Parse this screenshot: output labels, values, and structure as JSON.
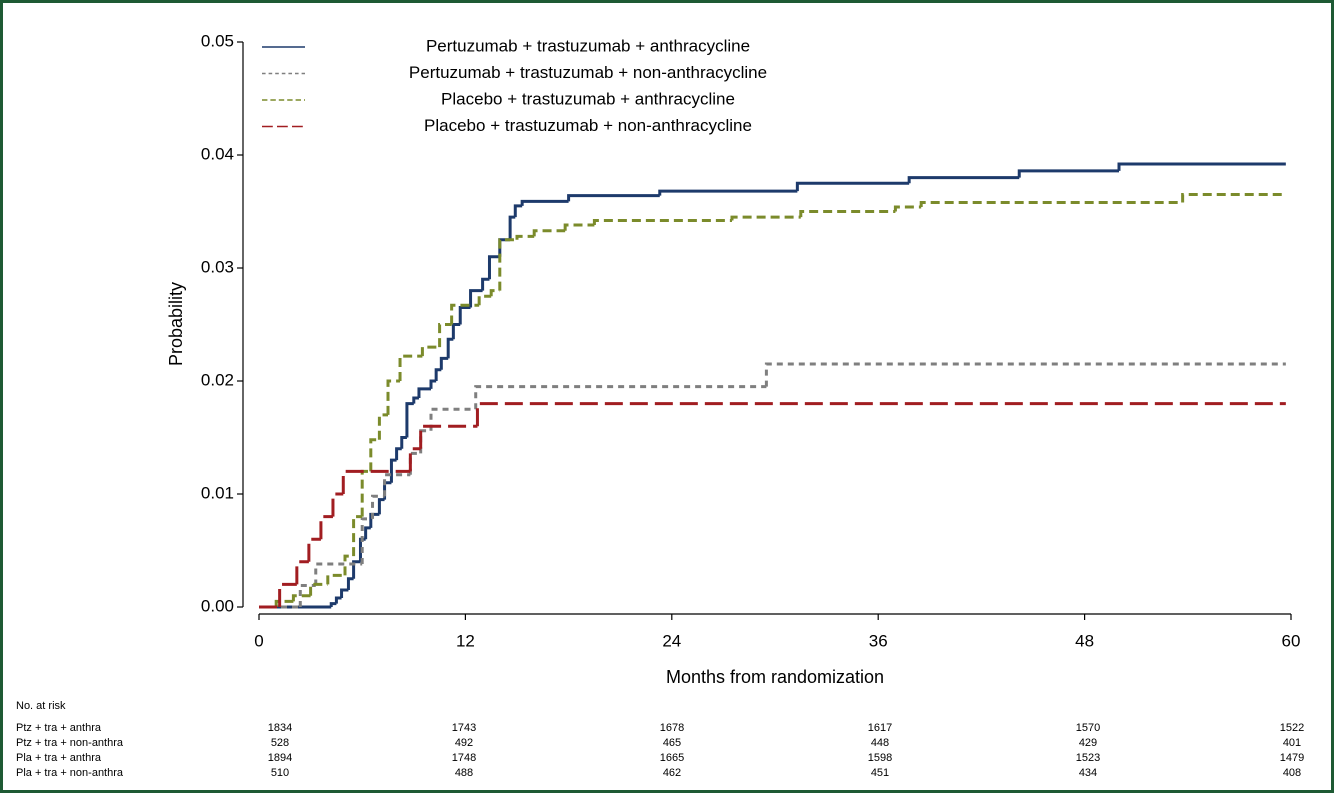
{
  "chart_data": {
    "type": "line",
    "step": true,
    "ylabel": "Probability",
    "xlabel": "Months from randomization",
    "xlim": [
      0,
      60
    ],
    "xticks": [
      0,
      12,
      24,
      36,
      48,
      60
    ],
    "ylim": [
      0,
      0.05
    ],
    "yticks": [
      {
        "value": 0,
        "label": "0.00"
      },
      {
        "value": 0.01,
        "label": "0.01"
      },
      {
        "value": 0.02,
        "label": "0.02"
      },
      {
        "value": 0.03,
        "label": "0.03"
      },
      {
        "value": 0.04,
        "label": "0.04"
      },
      {
        "value": 0.05,
        "label": "0.05"
      }
    ],
    "legend": "upper left",
    "series": [
      {
        "name": "Pertuzumab + trastuzumab + anthracycline",
        "color": "#1d3a6b",
        "dash": "none",
        "x": [
          0,
          4.2,
          4.5,
          4.8,
          5.2,
          5.5,
          5.9,
          6.2,
          6.5,
          7,
          7.3,
          7.7,
          8,
          8.3,
          8.6,
          9,
          9.3,
          10,
          10.3,
          10.6,
          11,
          11.3,
          11.7,
          12.3,
          13,
          13.4,
          14,
          14.6,
          14.9,
          15.3,
          18,
          23.3,
          31.3,
          37.8,
          44.2,
          50,
          59.7
        ],
        "values": [
          0,
          0.0003,
          0.0008,
          0.0015,
          0.0025,
          0.004,
          0.006,
          0.007,
          0.0082,
          0.0095,
          0.011,
          0.013,
          0.014,
          0.015,
          0.018,
          0.0185,
          0.0193,
          0.02,
          0.021,
          0.022,
          0.0237,
          0.025,
          0.0265,
          0.028,
          0.029,
          0.031,
          0.0325,
          0.0345,
          0.0355,
          0.0359,
          0.0364,
          0.0368,
          0.0375,
          0.038,
          0.0386,
          0.0392,
          0.0392
        ]
      },
      {
        "name": "Pertuzumab + trastuzumab + non-anthracycline",
        "color": "#7f7f7f",
        "dash": "6 5",
        "x": [
          0,
          2.4,
          3.3,
          6,
          6.6,
          7.3,
          8.8,
          9.4,
          10,
          12.6,
          29.5,
          59.7
        ],
        "values": [
          0,
          0.0019,
          0.0038,
          0.0078,
          0.0098,
          0.0117,
          0.0136,
          0.0156,
          0.0175,
          0.0195,
          0.0215,
          0.0215
        ]
      },
      {
        "name": "Placebo + trastuzumab + anthracycline",
        "color": "#7b8b2b",
        "dash": "9 5",
        "x": [
          0,
          1,
          2,
          3,
          4,
          5,
          5.5,
          6,
          6.5,
          7,
          7.5,
          8.2,
          9.5,
          10.5,
          11.2,
          12.8,
          13.5,
          14,
          15,
          16,
          17.8,
          19.5,
          27.5,
          31.5,
          37,
          38.5,
          53.7,
          59.7
        ],
        "values": [
          0,
          0.0005,
          0.001,
          0.002,
          0.0028,
          0.0045,
          0.008,
          0.012,
          0.0148,
          0.017,
          0.02,
          0.0222,
          0.023,
          0.025,
          0.0267,
          0.0275,
          0.028,
          0.0325,
          0.0328,
          0.0333,
          0.0338,
          0.0342,
          0.0345,
          0.035,
          0.0354,
          0.0358,
          0.0365,
          0.0365
        ]
      },
      {
        "name": "Placebo + trastuzumab + non-anthracycline",
        "color": "#a11d21",
        "dash": "18 7",
        "x": [
          0,
          1.2,
          2.2,
          2.9,
          3.6,
          4.3,
          4.9,
          8.8,
          9.4,
          12.7,
          59.7
        ],
        "values": [
          0,
          0.002,
          0.004,
          0.006,
          0.008,
          0.01,
          0.012,
          0.014,
          0.016,
          0.018,
          0.018
        ]
      }
    ],
    "risk_table": {
      "title": "No. at risk",
      "rows": [
        {
          "label": "Ptz + tra + anthra",
          "values": [
            1834,
            1743,
            1678,
            1617,
            1570,
            1522
          ]
        },
        {
          "label": "Ptz + tra + non-anthra",
          "values": [
            528,
            492,
            465,
            448,
            429,
            401
          ]
        },
        {
          "label": "Pla + tra + anthra",
          "values": [
            1894,
            1748,
            1665,
            1598,
            1523,
            1479
          ]
        },
        {
          "label": "Pla + tra + non-anthra",
          "values": [
            510,
            488,
            462,
            451,
            434,
            408
          ]
        }
      ]
    }
  }
}
